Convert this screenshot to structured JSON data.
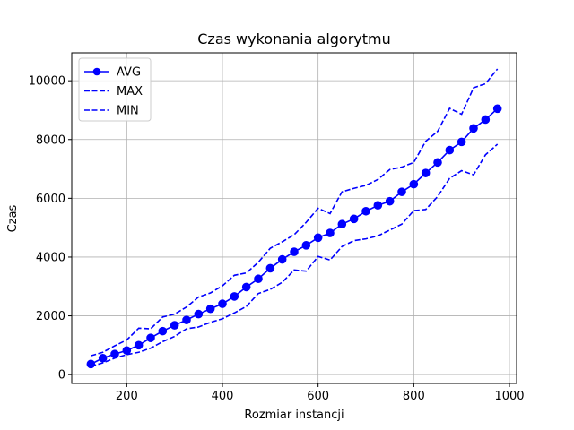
{
  "chart_data": {
    "type": "line",
    "title": "Czas wykonania algorytmu",
    "xlabel": "Rozmiar instancji",
    "ylabel": "Czas",
    "xlim": [
      85,
      1015
    ],
    "ylim": [
      -300,
      10950
    ],
    "xticks": [
      200,
      400,
      600,
      800,
      1000
    ],
    "yticks": [
      0,
      2000,
      4000,
      6000,
      8000,
      10000
    ],
    "grid": true,
    "legend_position": "top-left",
    "x": [
      125,
      150,
      175,
      200,
      225,
      250,
      275,
      300,
      325,
      350,
      375,
      400,
      425,
      450,
      475,
      500,
      525,
      550,
      575,
      600,
      625,
      650,
      675,
      700,
      725,
      750,
      775,
      800,
      825,
      850,
      875,
      900,
      925,
      950,
      975
    ],
    "series": [
      {
        "name": "AVG",
        "style": "solid-marker",
        "color": "#0000ff",
        "values": [
          360,
          560,
          700,
          820,
          1000,
          1250,
          1480,
          1680,
          1860,
          2060,
          2240,
          2410,
          2660,
          2980,
          3260,
          3620,
          3920,
          4180,
          4400,
          4660,
          4820,
          5120,
          5300,
          5560,
          5760,
          5900,
          6220,
          6480,
          6860,
          7220,
          7640,
          7920,
          8380,
          8680,
          9050
        ]
      },
      {
        "name": "MAX",
        "style": "dashed",
        "color": "#0000ff",
        "values": [
          640,
          760,
          980,
          1180,
          1580,
          1560,
          1960,
          2060,
          2300,
          2640,
          2780,
          3020,
          3380,
          3460,
          3820,
          4300,
          4520,
          4760,
          5180,
          5660,
          5480,
          6220,
          6340,
          6440,
          6640,
          6980,
          7060,
          7220,
          7940,
          8280,
          9060,
          8860,
          9760,
          9900,
          10400
        ]
      },
      {
        "name": "MIN",
        "style": "dashed",
        "color": "#0000ff",
        "values": [
          280,
          400,
          560,
          680,
          760,
          900,
          1120,
          1300,
          1560,
          1620,
          1780,
          1900,
          2100,
          2320,
          2760,
          2900,
          3140,
          3560,
          3520,
          4020,
          3900,
          4360,
          4560,
          4620,
          4720,
          4920,
          5120,
          5580,
          5620,
          6060,
          6680,
          6940,
          6800,
          7480,
          7840
        ]
      }
    ]
  }
}
